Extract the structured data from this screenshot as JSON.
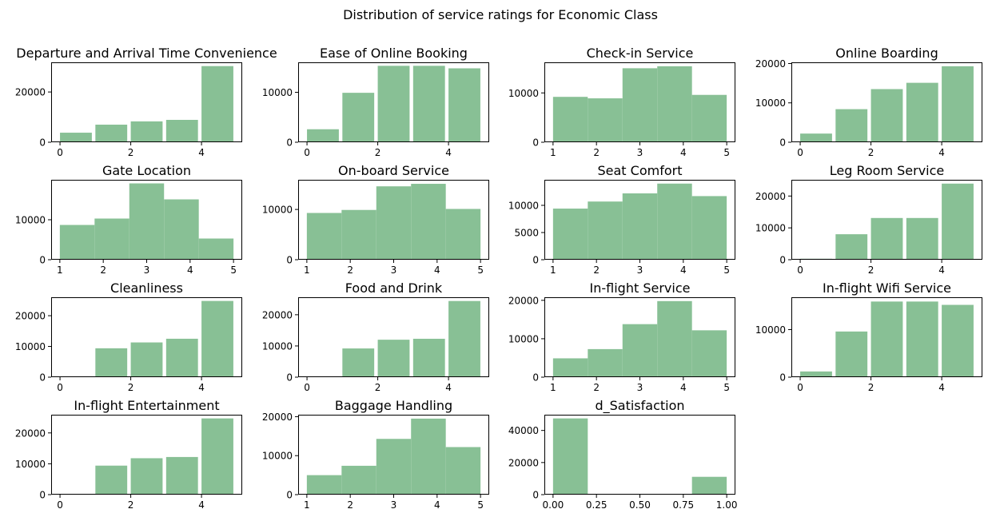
{
  "title": "Distribution of service ratings for Economic Class",
  "chart_data": [
    {
      "type": "bar",
      "title": "Departure and Arrival Time Convenience",
      "bins": [
        [
          0,
          0.9,
          3800
        ],
        [
          1,
          1.9,
          7000
        ],
        [
          2,
          2.9,
          8300
        ],
        [
          3,
          3.9,
          8900
        ],
        [
          4,
          4.9,
          30300
        ]
      ],
      "xlim": [
        -0.25,
        5.15
      ],
      "ylim": [
        0,
        31800
      ],
      "xticks": [
        0,
        2,
        4
      ],
      "xticklabels": [
        "0",
        "2",
        "4"
      ],
      "yticks": [
        0,
        20000
      ],
      "yticklabels": [
        "0",
        "20000"
      ]
    },
    {
      "type": "bar",
      "title": "Ease of Online Booking",
      "bins": [
        [
          0,
          0.9,
          2600
        ],
        [
          1,
          1.9,
          9900
        ],
        [
          2,
          2.9,
          15300
        ],
        [
          3,
          3.9,
          15300
        ],
        [
          4,
          4.9,
          14800
        ]
      ],
      "xlim": [
        -0.25,
        5.15
      ],
      "ylim": [
        0,
        16000
      ],
      "xticks": [
        0,
        2,
        4
      ],
      "xticklabels": [
        "0",
        "2",
        "4"
      ],
      "yticks": [
        0,
        10000
      ],
      "yticklabels": [
        "0",
        "10000"
      ]
    },
    {
      "type": "bar",
      "title": "Check-in Service",
      "bins": [
        [
          1,
          1.8,
          9200
        ],
        [
          1.8,
          2.6,
          8900
        ],
        [
          2.6,
          3.4,
          15000
        ],
        [
          3.4,
          4.2,
          15400
        ],
        [
          4.2,
          5,
          9600
        ]
      ],
      "xlim": [
        0.8,
        5.2
      ],
      "ylim": [
        0,
        16200
      ],
      "xticks": [
        1,
        2,
        3,
        4,
        5
      ],
      "xticklabels": [
        "1",
        "2",
        "3",
        "4",
        "5"
      ],
      "yticks": [
        0,
        10000
      ],
      "yticklabels": [
        "0",
        "10000"
      ]
    },
    {
      "type": "bar",
      "title": "Online Boarding",
      "bins": [
        [
          0,
          0.9,
          2200
        ],
        [
          1,
          1.9,
          8400
        ],
        [
          2,
          2.9,
          13500
        ],
        [
          3,
          3.9,
          15100
        ],
        [
          4,
          4.9,
          19300
        ]
      ],
      "xlim": [
        -0.25,
        5.15
      ],
      "ylim": [
        0,
        20300
      ],
      "xticks": [
        0,
        2,
        4
      ],
      "xticklabels": [
        "0",
        "2",
        "4"
      ],
      "yticks": [
        0,
        10000,
        20000
      ],
      "yticklabels": [
        "0",
        "10000",
        "20000"
      ]
    },
    {
      "type": "bar",
      "title": "Gate Location",
      "bins": [
        [
          1,
          1.8,
          8700
        ],
        [
          1.8,
          2.6,
          10300
        ],
        [
          2.6,
          3.4,
          19100
        ],
        [
          3.4,
          4.2,
          15100
        ],
        [
          4.2,
          5,
          5300
        ]
      ],
      "xlim": [
        0.8,
        5.2
      ],
      "ylim": [
        0,
        20000
      ],
      "xticks": [
        1,
        2,
        3,
        4,
        5
      ],
      "xticklabels": [
        "1",
        "2",
        "3",
        "4",
        "5"
      ],
      "yticks": [
        0,
        10000
      ],
      "yticklabels": [
        "0",
        "10000"
      ]
    },
    {
      "type": "bar",
      "title": "On-board Service",
      "bins": [
        [
          1,
          1.8,
          9300
        ],
        [
          1.8,
          2.6,
          9900
        ],
        [
          2.6,
          3.4,
          14600
        ],
        [
          3.4,
          4.2,
          15100
        ],
        [
          4.2,
          5,
          10100
        ]
      ],
      "xlim": [
        0.8,
        5.2
      ],
      "ylim": [
        0,
        15900
      ],
      "xticks": [
        1,
        2,
        3,
        4,
        5
      ],
      "xticklabels": [
        "1",
        "2",
        "3",
        "4",
        "5"
      ],
      "yticks": [
        0,
        10000
      ],
      "yticklabels": [
        "0",
        "10000"
      ]
    },
    {
      "type": "bar",
      "title": "Seat Comfort",
      "bins": [
        [
          1,
          1.8,
          9400
        ],
        [
          1.8,
          2.6,
          10700
        ],
        [
          2.6,
          3.4,
          12200
        ],
        [
          3.4,
          4.2,
          14000
        ],
        [
          4.2,
          5,
          11700
        ]
      ],
      "xlim": [
        0.8,
        5.2
      ],
      "ylim": [
        0,
        14700
      ],
      "xticks": [
        1,
        2,
        3,
        4,
        5
      ],
      "xticklabels": [
        "1",
        "2",
        "3",
        "4",
        "5"
      ],
      "yticks": [
        0,
        5000,
        10000
      ],
      "yticklabels": [
        "0",
        "5000",
        "10000"
      ]
    },
    {
      "type": "bar",
      "title": "Leg Room Service",
      "bins": [
        [
          0,
          0.9,
          300
        ],
        [
          1,
          1.9,
          8000
        ],
        [
          2,
          2.9,
          13100
        ],
        [
          3,
          3.9,
          13100
        ],
        [
          4,
          4.9,
          23900
        ]
      ],
      "xlim": [
        -0.25,
        5.15
      ],
      "ylim": [
        0,
        25100
      ],
      "xticks": [
        0,
        2,
        4
      ],
      "xticklabels": [
        "0",
        "2",
        "4"
      ],
      "yticks": [
        0,
        10000,
        20000
      ],
      "yticklabels": [
        "0",
        "10000",
        "20000"
      ]
    },
    {
      "type": "bar",
      "title": "Cleanliness",
      "bins": [
        [
          0,
          0.9,
          0
        ],
        [
          1,
          1.9,
          9400
        ],
        [
          2,
          2.9,
          11300
        ],
        [
          3,
          3.9,
          12500
        ],
        [
          4,
          4.9,
          24800
        ]
      ],
      "xlim": [
        -0.25,
        5.15
      ],
      "ylim": [
        0,
        26000
      ],
      "xticks": [
        0,
        2,
        4
      ],
      "xticklabels": [
        "0",
        "2",
        "4"
      ],
      "yticks": [
        0,
        10000,
        20000
      ],
      "yticklabels": [
        "0",
        "10000",
        "20000"
      ]
    },
    {
      "type": "bar",
      "title": "Food and Drink",
      "bins": [
        [
          0,
          0.9,
          0
        ],
        [
          1,
          1.9,
          9200
        ],
        [
          2,
          2.9,
          12000
        ],
        [
          3,
          3.9,
          12300
        ],
        [
          4,
          4.9,
          24400
        ]
      ],
      "xlim": [
        -0.25,
        5.15
      ],
      "ylim": [
        0,
        25600
      ],
      "xticks": [
        0,
        2,
        4
      ],
      "xticklabels": [
        "0",
        "2",
        "4"
      ],
      "yticks": [
        0,
        10000,
        20000
      ],
      "yticklabels": [
        "0",
        "10000",
        "20000"
      ]
    },
    {
      "type": "bar",
      "title": "In-flight Service",
      "bins": [
        [
          1,
          1.8,
          4900
        ],
        [
          1.8,
          2.6,
          7300
        ],
        [
          2.6,
          3.4,
          13800
        ],
        [
          3.4,
          4.2,
          19800
        ],
        [
          4.2,
          5,
          12200
        ]
      ],
      "xlim": [
        0.8,
        5.2
      ],
      "ylim": [
        0,
        20800
      ],
      "xticks": [
        1,
        2,
        3,
        4,
        5
      ],
      "xticklabels": [
        "1",
        "2",
        "3",
        "4",
        "5"
      ],
      "yticks": [
        0,
        10000,
        20000
      ],
      "yticklabels": [
        "0",
        "10000",
        "20000"
      ]
    },
    {
      "type": "bar",
      "title": "In-flight Wifi Service",
      "bins": [
        [
          0,
          0.9,
          1200
        ],
        [
          1,
          1.9,
          9600
        ],
        [
          2,
          2.9,
          15900
        ],
        [
          3,
          3.9,
          15900
        ],
        [
          4,
          4.9,
          15200
        ]
      ],
      "xlim": [
        -0.25,
        5.15
      ],
      "ylim": [
        0,
        16800
      ],
      "xticks": [
        0,
        2,
        4
      ],
      "xticklabels": [
        "0",
        "2",
        "4"
      ],
      "yticks": [
        0,
        10000
      ],
      "yticklabels": [
        "0",
        "10000"
      ]
    },
    {
      "type": "bar",
      "title": "In-flight Entertainment",
      "bins": [
        [
          0,
          0.9,
          0
        ],
        [
          1,
          1.9,
          9400
        ],
        [
          2,
          2.9,
          11800
        ],
        [
          3,
          3.9,
          12200
        ],
        [
          4,
          4.9,
          24700
        ]
      ],
      "xlim": [
        -0.25,
        5.15
      ],
      "ylim": [
        0,
        25900
      ],
      "xticks": [
        0,
        2,
        4
      ],
      "xticklabels": [
        "0",
        "2",
        "4"
      ],
      "yticks": [
        0,
        10000,
        20000
      ],
      "yticklabels": [
        "0",
        "10000",
        "20000"
      ]
    },
    {
      "type": "bar",
      "title": "Baggage Handling",
      "bins": [
        [
          1,
          1.8,
          5000
        ],
        [
          1.8,
          2.6,
          7400
        ],
        [
          2.6,
          3.4,
          14300
        ],
        [
          3.4,
          4.2,
          19500
        ],
        [
          4.2,
          5,
          12200
        ]
      ],
      "xlim": [
        0.8,
        5.2
      ],
      "ylim": [
        0,
        20500
      ],
      "xticks": [
        1,
        2,
        3,
        4,
        5
      ],
      "xticklabels": [
        "1",
        "2",
        "3",
        "4",
        "5"
      ],
      "yticks": [
        0,
        10000,
        20000
      ],
      "yticklabels": [
        "0",
        "10000",
        "20000"
      ]
    },
    {
      "type": "bar",
      "title": "d_Satisfaction",
      "bins": [
        [
          0,
          0.2,
          47500
        ],
        [
          0.2,
          0.4,
          0
        ],
        [
          0.4,
          0.6,
          0
        ],
        [
          0.6,
          0.8,
          0
        ],
        [
          0.8,
          1.0,
          11100
        ]
      ],
      "xlim": [
        -0.05,
        1.05
      ],
      "ylim": [
        0,
        49800
      ],
      "xticks": [
        0,
        0.25,
        0.5,
        0.75,
        1.0
      ],
      "xticklabels": [
        "0.00",
        "0.25",
        "0.50",
        "0.75",
        "1.00"
      ],
      "yticks": [
        0,
        20000,
        40000
      ],
      "yticklabels": [
        "0",
        "20000",
        "40000"
      ]
    }
  ],
  "colors": {
    "bar": "#88c095",
    "axes": "#000000",
    "background": "#ffffff"
  }
}
